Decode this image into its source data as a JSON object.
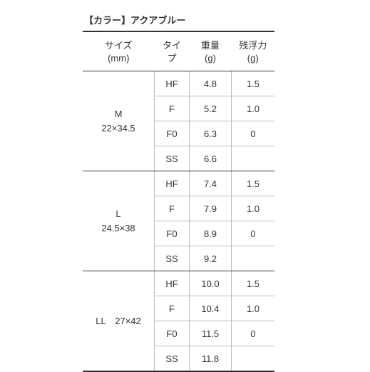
{
  "title": "【カラー】アクアブルー",
  "columns": {
    "size": {
      "line1": "サイズ",
      "line2": "(mm)"
    },
    "type": {
      "line1": "タイ",
      "line2": "プ"
    },
    "weight": {
      "line1": "重量",
      "line2": "(g)"
    },
    "buoy": {
      "line1": "残浮力",
      "line2": "(g)"
    }
  },
  "groups": [
    {
      "size_line1": "M",
      "size_line2": "22×34.5",
      "rows": [
        {
          "type": "HF",
          "weight": "4.8",
          "buoy": "1.5"
        },
        {
          "type": "F",
          "weight": "5.2",
          "buoy": "1.0"
        },
        {
          "type": "F0",
          "weight": "6.3",
          "buoy": "0"
        },
        {
          "type": "SS",
          "weight": "6.6",
          "buoy": ""
        }
      ]
    },
    {
      "size_line1": "L",
      "size_line2": "24.5×38",
      "rows": [
        {
          "type": "HF",
          "weight": "7.4",
          "buoy": "1.5"
        },
        {
          "type": "F",
          "weight": "7.9",
          "buoy": "1.0"
        },
        {
          "type": "F0",
          "weight": "8.9",
          "buoy": "0"
        },
        {
          "type": "SS",
          "weight": "9.2",
          "buoy": ""
        }
      ]
    },
    {
      "size_line1": "LL　27×42",
      "size_line2": "",
      "rows": [
        {
          "type": "HF",
          "weight": "10.0",
          "buoy": "1.5"
        },
        {
          "type": "F",
          "weight": "10.4",
          "buoy": "1.0"
        },
        {
          "type": "F0",
          "weight": "11.5",
          "buoy": "0"
        },
        {
          "type": "SS",
          "weight": "11.8",
          "buoy": ""
        }
      ]
    }
  ]
}
